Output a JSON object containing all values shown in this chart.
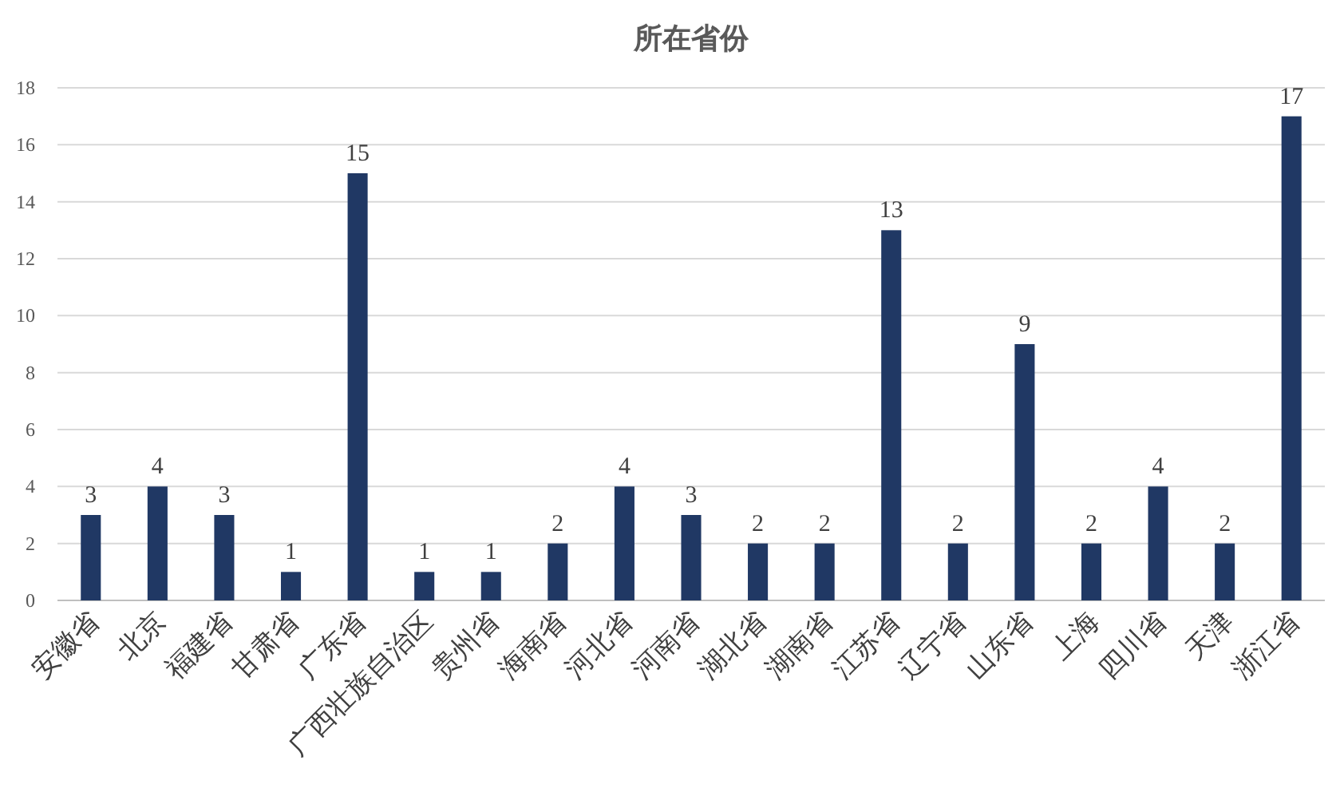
{
  "chart_data": {
    "type": "bar",
    "title": "所在省份",
    "categories": [
      "安徽省",
      "北京",
      "福建省",
      "甘肃省",
      "广东省",
      "广西壮族自治区",
      "贵州省",
      "海南省",
      "河北省",
      "河南省",
      "湖北省",
      "湖南省",
      "江苏省",
      "辽宁省",
      "山东省",
      "上海",
      "四川省",
      "天津",
      "浙江省"
    ],
    "values": [
      3,
      4,
      3,
      1,
      15,
      1,
      1,
      2,
      4,
      3,
      2,
      2,
      13,
      2,
      9,
      2,
      4,
      2,
      17
    ],
    "color": "#203864",
    "ylim": [
      0,
      18
    ],
    "yticks": [
      0,
      2,
      4,
      6,
      8,
      10,
      12,
      14,
      16,
      18
    ],
    "grid": "y",
    "data_labels": true
  }
}
